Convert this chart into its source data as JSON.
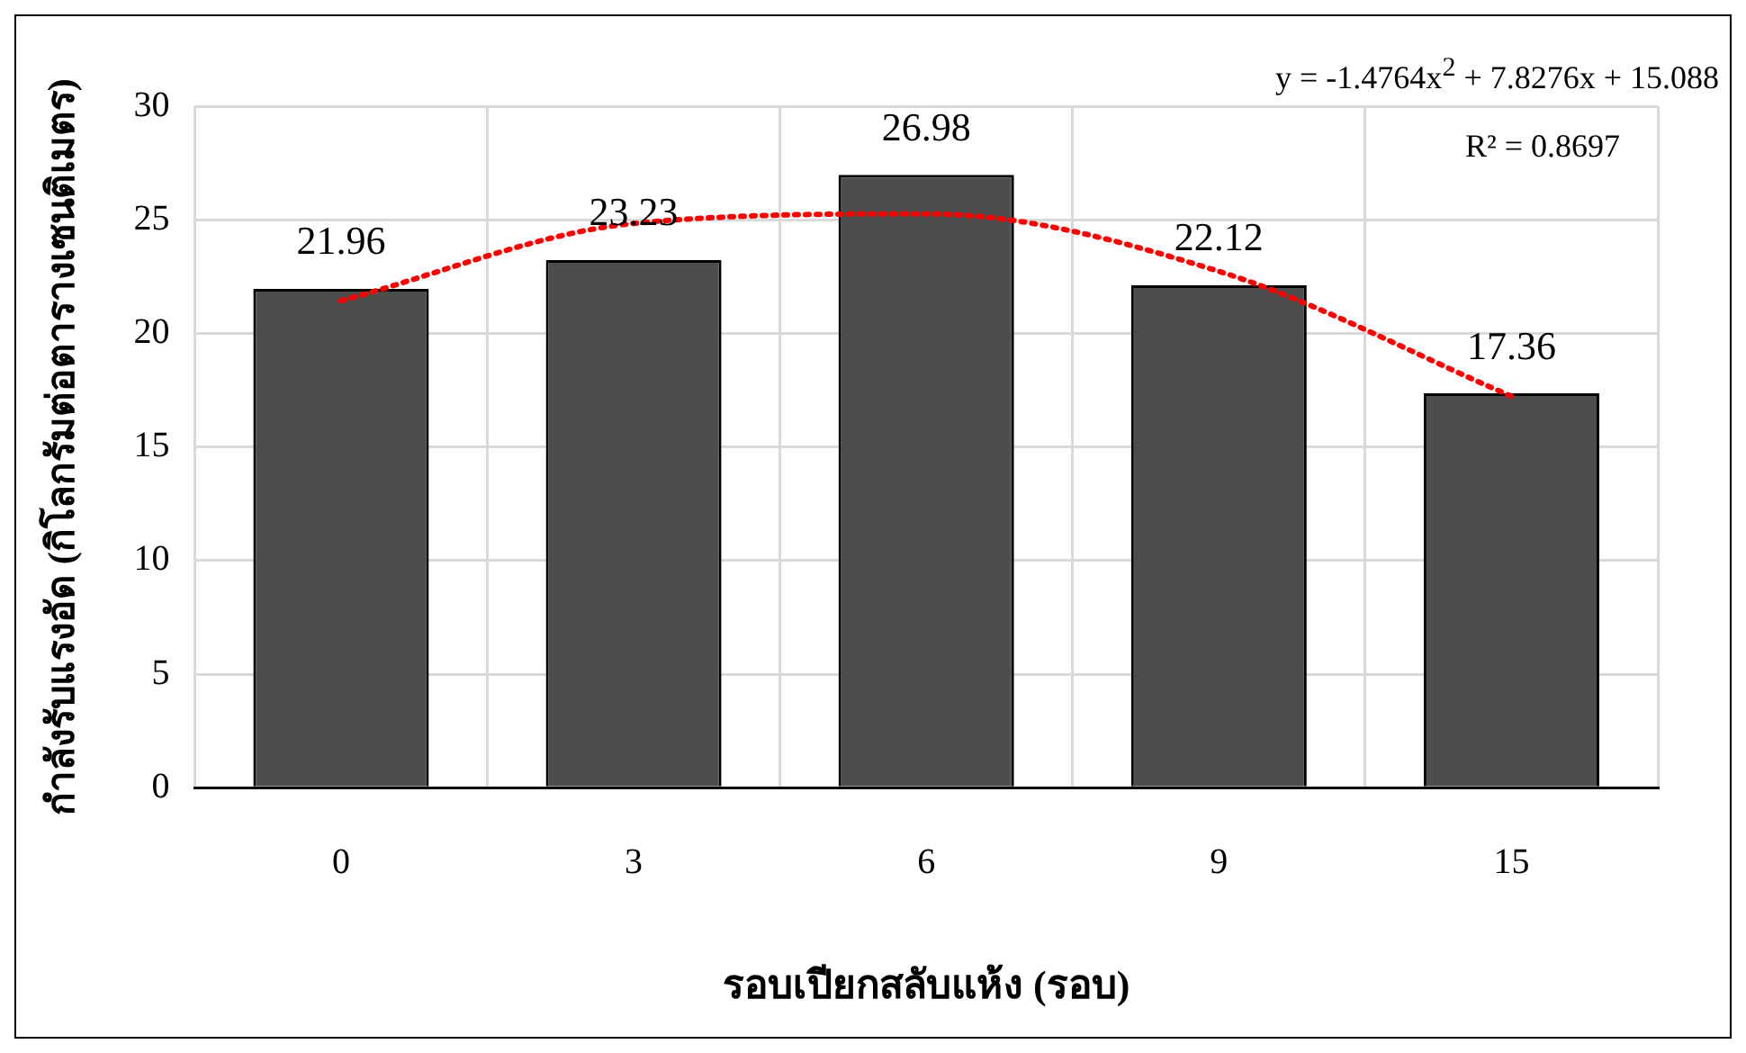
{
  "chart_data": {
    "type": "bar",
    "xlabel": "รอบเปียกสลับแห้ง (รอบ)",
    "ylabel": "กำลังรับแรงอัด (กิโลกรัมต่อตารางเซนติเมตร)",
    "categories": [
      "0",
      "3",
      "6",
      "9",
      "15"
    ],
    "series": [
      {
        "color": "#4d4d4d",
        "values": [
          21.96,
          23.23,
          26.98,
          22.12,
          17.36
        ],
        "value_labels": [
          "21.96",
          "23.23",
          "26.98",
          "22.12",
          "17.36"
        ]
      },
      {
        "type": "line",
        "color": "#ff0000",
        "line_style": "dotted",
        "marker": "none",
        "x": [
          "0",
          "3",
          "6",
          "9",
          "15"
        ],
        "values": [
          21.44,
          24.84,
          25.26,
          22.73,
          17.23
        ]
      }
    ],
    "ylim": [
      0,
      30
    ],
    "yticks": [
      0,
      5,
      10,
      15,
      20,
      25,
      30
    ],
    "grid": true,
    "legend": false,
    "annotations": [
      "y = -1.4764x$^{2}$ + 7.8276x + 15.088",
      "R² = 0.8697"
    ]
  }
}
